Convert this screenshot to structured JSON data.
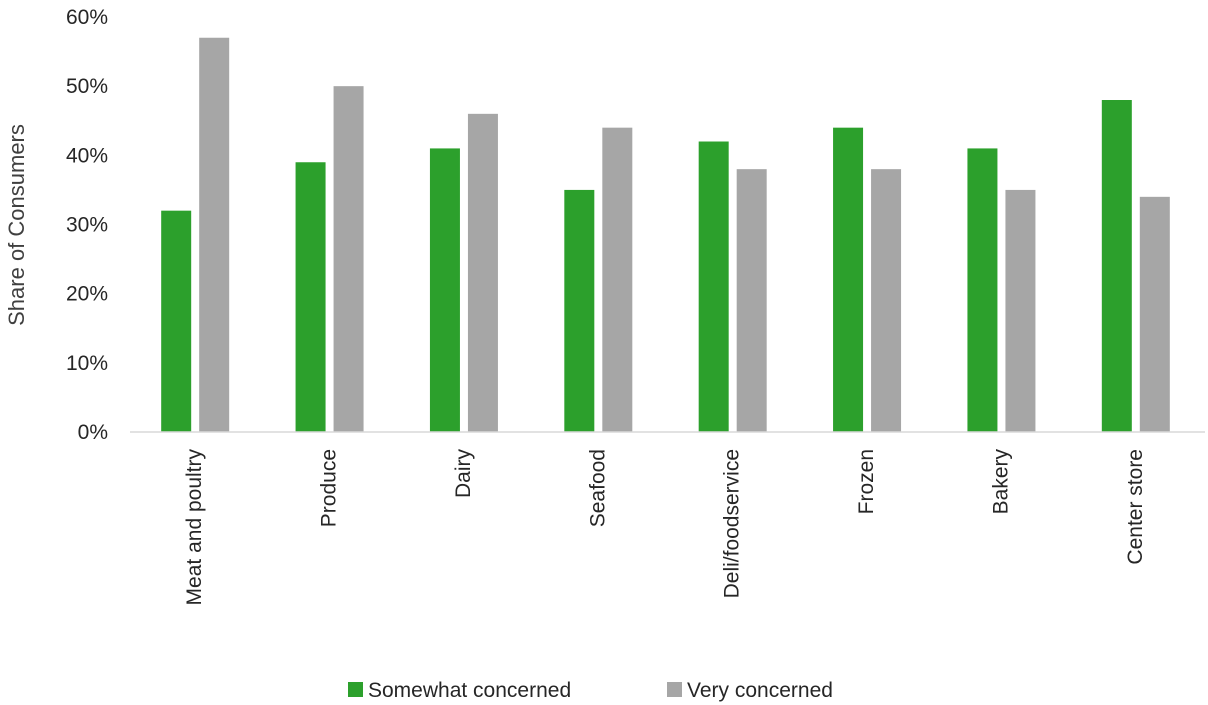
{
  "chart_data": {
    "type": "bar",
    "categories": [
      "Meat and poultry",
      "Produce",
      "Dairy",
      "Seafood",
      "Deli/foodservice",
      "Frozen",
      "Bakery",
      "Center store"
    ],
    "series": [
      {
        "name": "Somewhat concerned",
        "color": "#2ca02c",
        "values": [
          32,
          39,
          41,
          35,
          42,
          44,
          41,
          48
        ]
      },
      {
        "name": "Very concerned",
        "color": "#a6a6a6",
        "values": [
          57,
          50,
          46,
          44,
          38,
          38,
          35,
          34
        ]
      }
    ],
    "ylabel": "Share of Consumers",
    "ylim": [
      0,
      60
    ],
    "yticks": [
      "0%",
      "10%",
      "20%",
      "30%",
      "40%",
      "50%",
      "60%"
    ],
    "ytick_values": [
      0,
      10,
      20,
      30,
      40,
      50,
      60
    ],
    "grid": false,
    "legend_position": "bottom",
    "axis_color": "#d9d9d9"
  }
}
